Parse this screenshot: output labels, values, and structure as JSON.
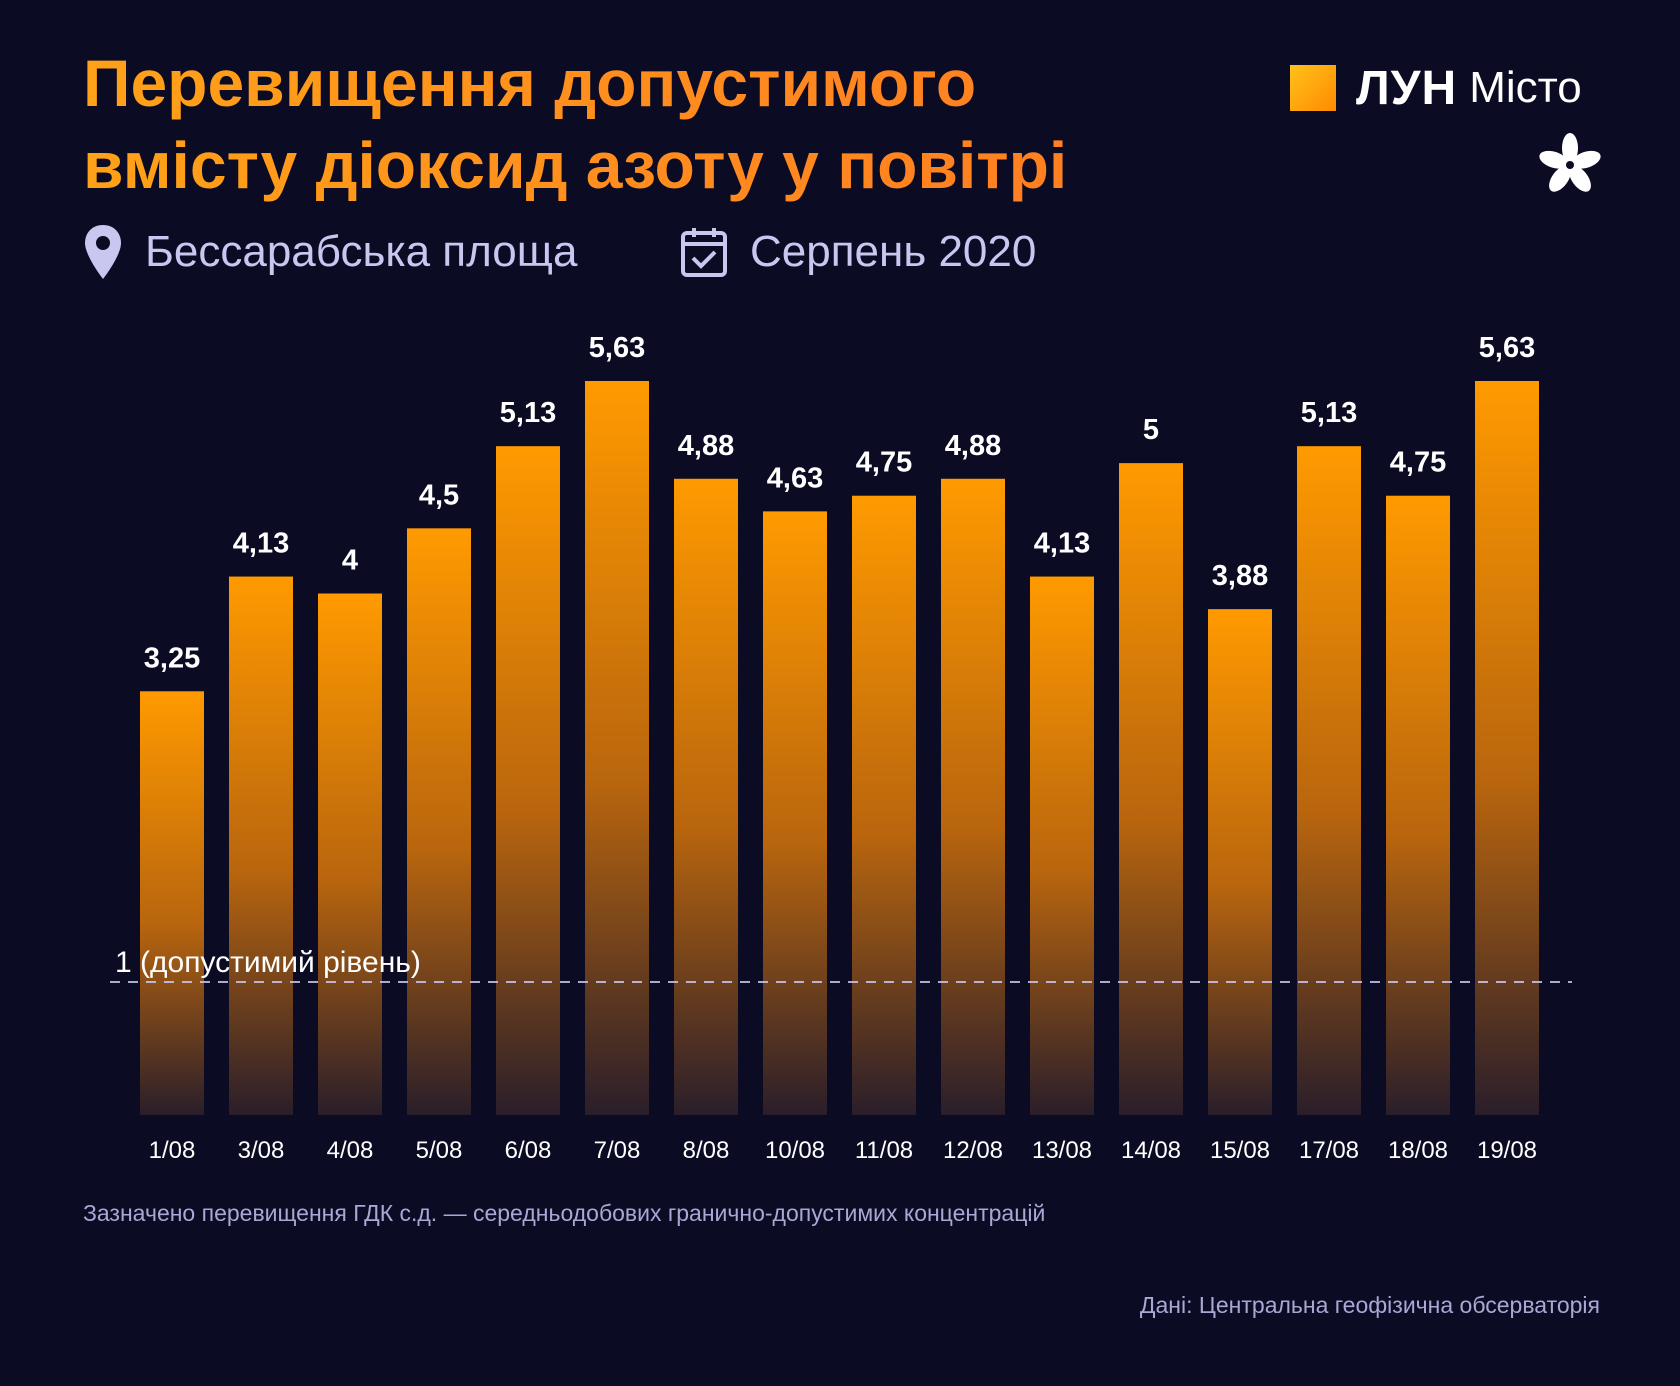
{
  "header": {
    "title_line1": "Перевищення допустимого",
    "title_line2": "вмісту діоксид азоту у повітрі",
    "location": "Бессарабська площа",
    "period": "Серпень 2020",
    "location_icon": "map-pin-icon",
    "period_icon": "calendar-check-icon"
  },
  "logo": {
    "lun": "ЛУН",
    "misto": "Місто",
    "mark_icon": "chestnut-leaf-icon"
  },
  "colors": {
    "background": "#0b0b24",
    "bar_top": "#ff9a00",
    "bar_bottom": "#2a1e2a",
    "title": "#ff9514",
    "subtle_text": "#c9c7f0"
  },
  "chart_data": {
    "type": "bar",
    "categories": [
      "1/08",
      "3/08",
      "4/08",
      "5/08",
      "6/08",
      "7/08",
      "8/08",
      "10/08",
      "11/08",
      "12/08",
      "13/08",
      "14/08",
      "15/08",
      "17/08",
      "18/08",
      "19/08"
    ],
    "values": [
      3.25,
      4.13,
      4,
      4.5,
      5.13,
      5.63,
      4.88,
      4.63,
      4.75,
      4.88,
      4.13,
      5,
      3.88,
      5.13,
      4.75,
      5.63
    ],
    "value_labels": [
      "3,25",
      "4,13",
      "4",
      "4,5",
      "5,13",
      "5,63",
      "4,88",
      "4,63",
      "4,75",
      "4,88",
      "4,13",
      "5",
      "3,88",
      "5,13",
      "4,75",
      "5,63"
    ],
    "reference_line": {
      "value": 1,
      "label": "1 (допустимий рівень)"
    },
    "ylim": [
      0,
      5.63
    ],
    "grid": false,
    "legend": "none"
  },
  "footer": {
    "note": "Зазначено перевищення ГДК с.д. — середньодобових гранично-допустимих концентрацій",
    "source": "Дані: Центральна геофізична обсерваторія"
  }
}
